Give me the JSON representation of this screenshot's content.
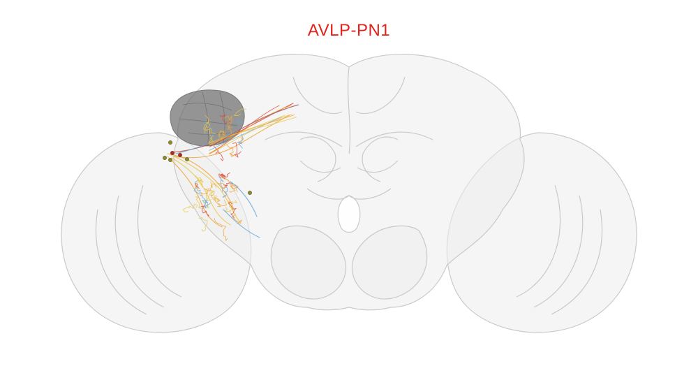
{
  "title": "AVLP-PN1",
  "colors": {
    "title": "#e0241b",
    "brain_fill": "#ececec",
    "brain_stroke": "#c4c4c4",
    "neuropil_fill": "#6f6f6f",
    "neuron_orange": "#f0a23a",
    "neuron_yellow": "#e8c84a",
    "neuron_red": "#d8452e",
    "neuron_blue": "#6aa6d6",
    "soma_olive": "#8a8a2a",
    "soma_red": "#b22b1e"
  }
}
